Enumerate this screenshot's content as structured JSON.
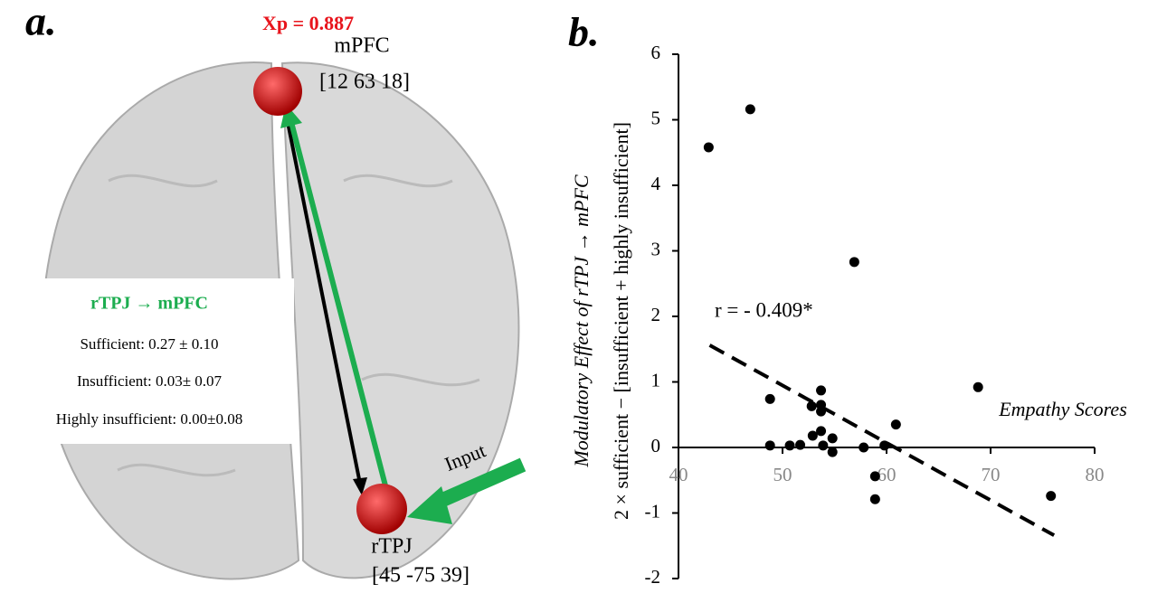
{
  "panel_a": {
    "label": "a.",
    "xp": "Xp = 0.887",
    "nodes": [
      {
        "name": "mPFC",
        "coords": "[12 63 18]"
      },
      {
        "name": "rTPJ",
        "coords": "[45 -75 39]"
      }
    ],
    "input": "Input",
    "legend": {
      "title": "rTPJ → mPFC",
      "rows": [
        "Sufficient:  0.27 ± 0.10",
        "Insufficient: 0.03± 0.07",
        "Highly insufficient: 0.00±0.08"
      ]
    }
  },
  "chart_data": {
    "type": "scatter",
    "panel_label": "b.",
    "x_label": "Empathy Scores",
    "y_label": [
      "Modulatory Effect  of  rTPJ → mPFC",
      "2 × sufficient − [insufficient + highly insufficient]"
    ],
    "annotation": "r = - 0.409*",
    "color": "#000000",
    "x": [
      42.9,
      46.9,
      56.9,
      48.8,
      48.8,
      50.7,
      51.7,
      52.8,
      52.9,
      53.7,
      53.7,
      53.7,
      53.7,
      53.9,
      54.8,
      54.8,
      57.8,
      58.9,
      58.9,
      59.8,
      60.9,
      68.8,
      75.8
    ],
    "values": [
      4.58,
      5.16,
      2.83,
      0.74,
      0.03,
      0.03,
      0.04,
      0.63,
      0.18,
      0.87,
      0.65,
      0.55,
      0.25,
      0.03,
      0.14,
      -0.07,
      0,
      -0.79,
      -0.44,
      0.03,
      0.35,
      0.92,
      -0.74
    ],
    "trendline": {
      "x": [
        43.0,
        76.1
      ],
      "y": [
        1.56,
        -1.34
      ]
    },
    "xlim": [
      40,
      80
    ],
    "xticks": [
      40,
      50,
      60,
      70,
      80
    ],
    "ylim": [
      -2,
      6
    ],
    "yticks": [
      -2,
      -1,
      0,
      1,
      2,
      3,
      4,
      5,
      6
    ]
  }
}
